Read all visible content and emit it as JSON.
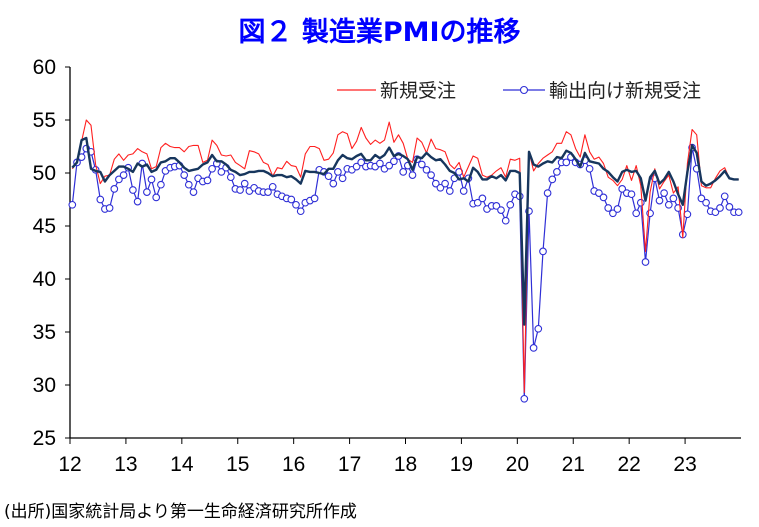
{
  "page": {
    "title": "図２ 製造業PMIの推移",
    "source": "(出所)国家統計局より第一生命経済研究所作成"
  },
  "chart_data": {
    "type": "line",
    "title": "図２ 製造業PMIの推移",
    "xlabel": "",
    "ylabel": "",
    "ylim": [
      25,
      60
    ],
    "yticks": [
      "60",
      "55",
      "50",
      "45",
      "40",
      "35",
      "30",
      "25"
    ],
    "xticks": [
      "12",
      "13",
      "14",
      "15",
      "16",
      "17",
      "18",
      "19",
      "20",
      "21",
      "22",
      "23"
    ],
    "x_start": "2012-01",
    "x_end": "2023-11",
    "grid": false,
    "legend_position": "top-right",
    "colors": {
      "new_orders": "#ff2020",
      "exports": "#2f2fd6",
      "pmi": "#17365d"
    },
    "series": [
      {
        "name": "新規受注",
        "color": "#ff2020",
        "marker": "none",
        "values": [
          50.4,
          51.0,
          53.0,
          55.0,
          54.5,
          50.8,
          49.0,
          49.7,
          49.8,
          51.3,
          51.8,
          51.2,
          51.7,
          51.8,
          52.3,
          52.0,
          51.8,
          50.4,
          50.6,
          52.4,
          52.8,
          52.5,
          52.4,
          52.4,
          52.0,
          52.5,
          52.6,
          52.6,
          51.0,
          51.2,
          53.1,
          52.6,
          51.7,
          51.6,
          51.7,
          51.0,
          50.7,
          50.4,
          52.1,
          52.0,
          51.8,
          51.0,
          50.8,
          49.7,
          50.5,
          50.4,
          51.1,
          50.7,
          50.6,
          49.6,
          51.8,
          52.5,
          52.5,
          52.3,
          51.2,
          51.3,
          51.9,
          53.6,
          53.9,
          53.7,
          52.3,
          53.0,
          54.3,
          53.3,
          52.7,
          53.1,
          52.8,
          53.1,
          54.8,
          52.9,
          53.6,
          52.8,
          51.3,
          51.0,
          53.3,
          52.9,
          51.9,
          53.2,
          52.3,
          52.2,
          52.0,
          50.8,
          50.4,
          51.0,
          49.6,
          50.6,
          51.6,
          51.4,
          49.8,
          49.6,
          49.8,
          50.2,
          50.5,
          49.6,
          51.3,
          51.2,
          51.4,
          29.3,
          52.0,
          50.2,
          50.9,
          51.4,
          51.7,
          52.0,
          52.8,
          52.8,
          53.9,
          53.6,
          52.3,
          51.5,
          53.6,
          52.0,
          51.3,
          51.5,
          50.9,
          49.6,
          49.3,
          48.8,
          49.4,
          50.7,
          49.3,
          50.7,
          48.8,
          42.6,
          48.2,
          50.4,
          48.5,
          49.2,
          49.8,
          48.1,
          48.7,
          43.9,
          50.9,
          54.1,
          53.6,
          48.8,
          48.6,
          48.6,
          49.5,
          50.2,
          50.5,
          49.5,
          49.4,
          49.4
        ]
      },
      {
        "name": "輸出向け新規受注",
        "color": "#2f2fd6",
        "marker": "circle",
        "values": [
          47.0,
          51.0,
          51.5,
          52.3,
          52.0,
          50.3,
          47.5,
          46.6,
          46.7,
          48.5,
          49.4,
          49.8,
          50.5,
          48.4,
          47.3,
          50.9,
          48.2,
          49.4,
          47.7,
          48.9,
          50.2,
          50.5,
          50.6,
          50.7,
          49.8,
          48.9,
          48.2,
          49.5,
          49.2,
          49.3,
          50.4,
          50.9,
          50.1,
          50.5,
          49.6,
          48.5,
          48.4,
          49.0,
          48.3,
          48.6,
          48.3,
          48.2,
          48.2,
          48.7,
          48.0,
          47.8,
          47.6,
          47.5,
          47.0,
          46.4,
          47.2,
          47.4,
          47.6,
          50.3,
          50.1,
          49.7,
          49.0,
          50.1,
          49.5,
          50.4,
          50.3,
          50.6,
          51.0,
          50.6,
          50.7,
          50.6,
          50.9,
          50.4,
          50.7,
          51.1,
          51.6,
          50.1,
          50.7,
          49.8,
          51.3,
          50.8,
          50.3,
          49.8,
          49.0,
          48.6,
          49.0,
          48.3,
          49.5,
          50.1,
          48.3,
          49.5,
          47.1,
          47.2,
          47.6,
          46.6,
          46.9,
          46.9,
          46.5,
          45.5,
          47.0,
          48.0,
          47.8,
          28.7,
          46.4,
          33.5,
          35.3,
          42.6,
          48.1,
          49.4,
          50.1,
          51.0,
          51.0,
          51.5,
          51.0,
          50.8,
          51.2,
          50.4,
          48.3,
          48.1,
          47.7,
          46.7,
          46.2,
          46.6,
          48.5,
          48.1,
          48.0,
          46.2,
          47.2,
          41.6,
          46.2,
          49.5,
          47.4,
          48.1,
          47.0,
          47.6,
          46.7,
          44.2,
          46.1,
          52.4,
          50.4,
          47.6,
          47.2,
          46.4,
          46.3,
          46.7,
          47.8,
          46.8,
          46.3,
          46.3
        ]
      },
      {
        "name": "",
        "color": "#17365d",
        "marker": "none",
        "values": [
          50.5,
          51.0,
          53.1,
          53.3,
          50.4,
          50.2,
          50.1,
          49.2,
          49.8,
          50.2,
          50.6,
          50.6,
          50.4,
          50.1,
          50.9,
          50.6,
          50.8,
          50.1,
          50.3,
          51.0,
          51.1,
          51.4,
          51.4,
          51.0,
          50.5,
          50.2,
          50.3,
          50.4,
          50.8,
          51.0,
          51.7,
          51.1,
          51.1,
          50.8,
          50.3,
          50.1,
          49.8,
          49.9,
          50.1,
          50.1,
          50.2,
          50.2,
          50.0,
          49.7,
          49.8,
          49.8,
          49.6,
          49.7,
          49.4,
          49.0,
          50.2,
          50.1,
          50.1,
          50.0,
          49.9,
          50.4,
          50.4,
          51.2,
          51.7,
          51.4,
          51.3,
          51.6,
          51.8,
          51.2,
          51.2,
          51.7,
          51.4,
          51.7,
          52.4,
          51.6,
          51.8,
          51.6,
          51.3,
          50.3,
          51.5,
          51.4,
          51.9,
          51.5,
          51.2,
          51.3,
          50.8,
          50.2,
          50.0,
          49.4,
          49.5,
          49.2,
          50.5,
          50.1,
          49.4,
          49.4,
          49.7,
          49.5,
          49.8,
          49.3,
          50.2,
          50.2,
          50.0,
          35.7,
          52.0,
          50.8,
          50.6,
          50.9,
          51.1,
          51.0,
          51.5,
          51.4,
          52.1,
          51.9,
          51.3,
          50.6,
          51.9,
          51.1,
          51.0,
          50.9,
          50.4,
          50.1,
          49.6,
          49.2,
          50.1,
          50.3,
          50.1,
          50.2,
          49.5,
          47.4,
          49.6,
          50.2,
          49.0,
          49.4,
          50.1,
          49.2,
          48.0,
          47.0,
          50.1,
          52.6,
          51.9,
          49.2,
          48.8,
          49.0,
          49.3,
          49.7,
          50.2,
          49.5,
          49.4,
          49.4
        ]
      }
    ]
  }
}
